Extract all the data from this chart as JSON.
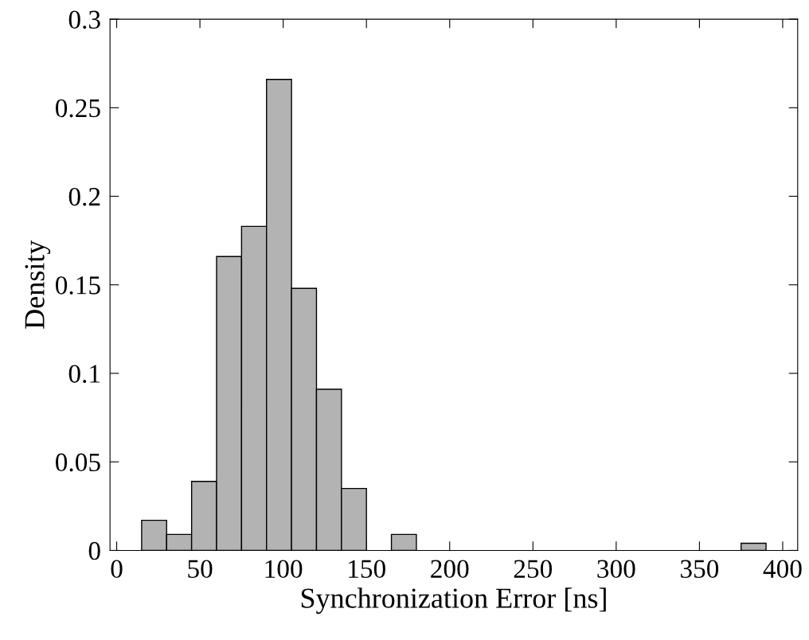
{
  "chart_data": {
    "type": "histogram",
    "xlabel": "Synchronization Error [ns]",
    "ylabel": "Density",
    "bins": [
      15,
      30,
      45,
      60,
      75,
      90,
      105,
      120,
      135,
      150,
      165,
      180,
      195,
      210,
      225,
      240,
      255,
      270,
      285,
      300,
      315,
      330,
      345,
      360,
      375,
      390
    ],
    "values": [
      0.017,
      0.009,
      0.039,
      0.166,
      0.183,
      0.266,
      0.148,
      0.091,
      0.035,
      0,
      0.009,
      0,
      0,
      0,
      0,
      0,
      0,
      0,
      0,
      0,
      0,
      0,
      0,
      0,
      0.004
    ],
    "color": "#b3b3b3",
    "xlim": [
      -4,
      409
    ],
    "xticks": [
      0,
      50,
      100,
      150,
      200,
      250,
      300,
      350,
      400
    ],
    "ylim": [
      0,
      0.3
    ],
    "yticks": [
      0,
      0.05,
      0.1,
      0.15,
      0.2,
      0.25,
      0.3
    ],
    "grid": false
  }
}
